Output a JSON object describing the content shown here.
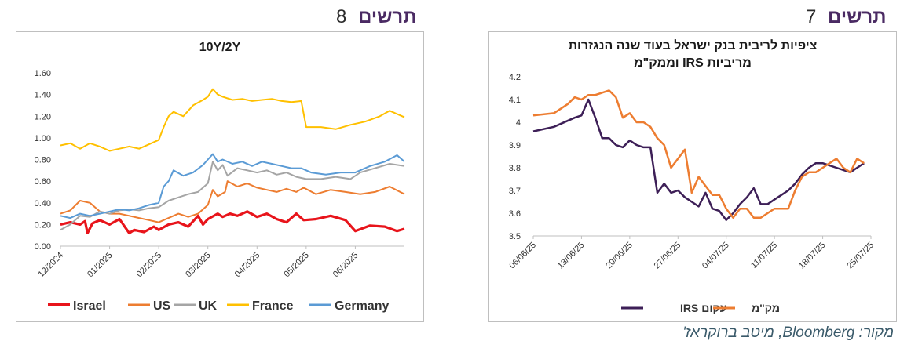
{
  "figure8": {
    "label": "תרשים",
    "number": "8",
    "chart_data": {
      "type": "line",
      "title": "10Y/2Y",
      "xlabel": "",
      "ylabel": "",
      "x_tick_labels": [
        "12/2024",
        "01/2025",
        "02/2025",
        "03/2025",
        "04/2025",
        "05/2025",
        "06/2025"
      ],
      "y_ticks": [
        "0.00",
        "0.20",
        "0.40",
        "0.60",
        "0.80",
        "1.00",
        "1.20",
        "1.40",
        "1.60"
      ],
      "ylim": [
        0,
        1.6
      ],
      "xlim": [
        0,
        7.0
      ],
      "grid": false,
      "legend_position": "bottom",
      "series": [
        {
          "name": "Israel",
          "color": "#e8141b",
          "x": [
            0,
            0.2,
            0.4,
            0.5,
            0.55,
            0.65,
            0.8,
            1.0,
            1.2,
            1.4,
            1.5,
            1.7,
            1.9,
            2.0,
            2.2,
            2.4,
            2.6,
            2.8,
            2.9,
            3.0,
            3.2,
            3.3,
            3.45,
            3.6,
            3.8,
            4.0,
            4.2,
            4.4,
            4.6,
            4.8,
            4.95,
            5.2,
            5.5,
            5.8,
            6.0,
            6.3,
            6.6,
            6.85,
            7.0
          ],
          "y": [
            0.2,
            0.22,
            0.2,
            0.23,
            0.12,
            0.21,
            0.24,
            0.2,
            0.25,
            0.12,
            0.15,
            0.13,
            0.18,
            0.15,
            0.2,
            0.22,
            0.18,
            0.28,
            0.2,
            0.25,
            0.3,
            0.27,
            0.3,
            0.28,
            0.32,
            0.27,
            0.3,
            0.25,
            0.22,
            0.3,
            0.24,
            0.25,
            0.28,
            0.24,
            0.14,
            0.19,
            0.18,
            0.14,
            0.16
          ]
        },
        {
          "name": "US",
          "color": "#ed7d31",
          "x": [
            0,
            0.2,
            0.4,
            0.6,
            0.8,
            1.0,
            1.2,
            1.4,
            1.6,
            1.8,
            2.0,
            2.2,
            2.4,
            2.6,
            2.8,
            3.0,
            3.1,
            3.2,
            3.35,
            3.4,
            3.6,
            3.8,
            4.0,
            4.2,
            4.4,
            4.6,
            4.8,
            4.95,
            5.2,
            5.5,
            5.8,
            6.1,
            6.4,
            6.7,
            7.0
          ],
          "y": [
            0.3,
            0.33,
            0.42,
            0.4,
            0.32,
            0.3,
            0.3,
            0.28,
            0.26,
            0.24,
            0.22,
            0.26,
            0.3,
            0.27,
            0.3,
            0.38,
            0.52,
            0.46,
            0.5,
            0.6,
            0.55,
            0.58,
            0.54,
            0.52,
            0.5,
            0.53,
            0.5,
            0.54,
            0.48,
            0.52,
            0.5,
            0.48,
            0.5,
            0.55,
            0.48
          ]
        },
        {
          "name": "UK",
          "color": "#a5a5a5",
          "x": [
            0,
            0.2,
            0.4,
            0.6,
            0.8,
            1.0,
            1.2,
            1.4,
            1.6,
            1.8,
            2.0,
            2.2,
            2.4,
            2.6,
            2.8,
            3.0,
            3.1,
            3.2,
            3.3,
            3.4,
            3.6,
            3.8,
            4.0,
            4.2,
            4.4,
            4.6,
            4.8,
            5.0,
            5.3,
            5.6,
            5.9,
            6.1,
            6.4,
            6.7,
            7.0
          ],
          "y": [
            0.15,
            0.2,
            0.28,
            0.27,
            0.32,
            0.3,
            0.33,
            0.34,
            0.33,
            0.35,
            0.36,
            0.42,
            0.45,
            0.48,
            0.5,
            0.58,
            0.78,
            0.7,
            0.75,
            0.65,
            0.72,
            0.7,
            0.68,
            0.7,
            0.66,
            0.68,
            0.64,
            0.62,
            0.62,
            0.64,
            0.62,
            0.68,
            0.72,
            0.76,
            0.74
          ]
        },
        {
          "name": "France",
          "color": "#ffc000",
          "x": [
            0,
            0.2,
            0.4,
            0.6,
            0.8,
            1.0,
            1.2,
            1.4,
            1.6,
            1.8,
            2.0,
            2.1,
            2.2,
            2.3,
            2.5,
            2.7,
            2.9,
            3.0,
            3.1,
            3.2,
            3.3,
            3.5,
            3.7,
            3.9,
            4.1,
            4.3,
            4.5,
            4.7,
            4.9,
            5.0,
            5.3,
            5.6,
            5.9,
            6.2,
            6.5,
            6.7,
            7.0
          ],
          "y": [
            0.93,
            0.95,
            0.9,
            0.95,
            0.92,
            0.88,
            0.9,
            0.92,
            0.9,
            0.94,
            0.98,
            1.1,
            1.2,
            1.24,
            1.2,
            1.3,
            1.35,
            1.38,
            1.45,
            1.4,
            1.38,
            1.35,
            1.36,
            1.34,
            1.35,
            1.36,
            1.34,
            1.33,
            1.34,
            1.1,
            1.1,
            1.08,
            1.12,
            1.15,
            1.2,
            1.25,
            1.19
          ]
        },
        {
          "name": "Germany",
          "color": "#5b9bd5",
          "x": [
            0,
            0.2,
            0.4,
            0.6,
            0.8,
            1.0,
            1.2,
            1.4,
            1.6,
            1.8,
            2.0,
            2.1,
            2.2,
            2.3,
            2.5,
            2.7,
            2.9,
            3.0,
            3.1,
            3.2,
            3.3,
            3.5,
            3.7,
            3.9,
            4.1,
            4.3,
            4.5,
            4.7,
            4.9,
            5.1,
            5.4,
            5.7,
            6.0,
            6.3,
            6.6,
            6.85,
            7.0
          ],
          "y": [
            0.28,
            0.26,
            0.3,
            0.28,
            0.3,
            0.32,
            0.34,
            0.33,
            0.35,
            0.38,
            0.4,
            0.55,
            0.6,
            0.7,
            0.65,
            0.68,
            0.75,
            0.8,
            0.85,
            0.78,
            0.8,
            0.76,
            0.78,
            0.74,
            0.78,
            0.76,
            0.74,
            0.72,
            0.72,
            0.68,
            0.66,
            0.68,
            0.68,
            0.74,
            0.78,
            0.84,
            0.78
          ]
        }
      ]
    }
  },
  "figure7": {
    "label": "תרשים",
    "number": "7",
    "chart_data": {
      "type": "line",
      "title": "ציפיות לריבית בנק ישראל בעוד שנה הנגזרות מריביות IRS וממק\"מ",
      "xlabel": "",
      "ylabel": "",
      "x_tick_labels": [
        "06/06/25",
        "13/06/25",
        "20/06/25",
        "27/06/25",
        "04/07/25",
        "11/07/25",
        "18/07/25",
        "25/07/25"
      ],
      "y_ticks": [
        "3.5",
        "3.6",
        "3.7",
        "3.8",
        "3.9",
        "4",
        "4.1",
        "4.2"
      ],
      "ylim": [
        3.5,
        4.2
      ],
      "xlim": [
        0,
        49
      ],
      "grid": false,
      "legend_position": "bottom",
      "series": [
        {
          "name": "עקום IRS",
          "color": "#3d1f57",
          "x": [
            0,
            3,
            6,
            7,
            8,
            9,
            10,
            11,
            12,
            13,
            14,
            15,
            16,
            17,
            18,
            19,
            20,
            21,
            22,
            23,
            24,
            25,
            26,
            27,
            28,
            29,
            30,
            31,
            32,
            33,
            34,
            35,
            36,
            37,
            38,
            39,
            40,
            41,
            42,
            43,
            44,
            45,
            46,
            47,
            48
          ],
          "y": [
            3.96,
            3.98,
            4.02,
            4.03,
            4.1,
            4.02,
            3.93,
            3.93,
            3.9,
            3.89,
            3.92,
            3.9,
            3.89,
            3.89,
            3.69,
            3.73,
            3.69,
            3.7,
            3.67,
            3.65,
            3.63,
            3.69,
            3.62,
            3.61,
            3.57,
            3.6,
            3.64,
            3.67,
            3.71,
            3.64,
            3.64,
            3.66,
            3.68,
            3.7,
            3.73,
            3.77,
            3.8,
            3.82,
            3.82,
            3.81,
            3.8,
            3.79,
            3.78,
            3.8,
            3.82
          ]
        },
        {
          "name": "מק\"מ",
          "color": "#ed7d31",
          "x": [
            0,
            3,
            5,
            6,
            7,
            8,
            9,
            10,
            11,
            12,
            13,
            14,
            15,
            16,
            17,
            18,
            19,
            20,
            21,
            22,
            23,
            24,
            25,
            26,
            27,
            28,
            29,
            30,
            31,
            32,
            33,
            34,
            35,
            36,
            37,
            38,
            39,
            40,
            41,
            42,
            43,
            44,
            45,
            46,
            47,
            48
          ],
          "y": [
            4.03,
            4.04,
            4.08,
            4.11,
            4.1,
            4.12,
            4.12,
            4.13,
            4.14,
            4.11,
            4.02,
            4.04,
            4.0,
            4.0,
            3.98,
            3.93,
            3.9,
            3.8,
            3.84,
            3.88,
            3.69,
            3.76,
            3.72,
            3.68,
            3.68,
            3.62,
            3.58,
            3.62,
            3.62,
            3.58,
            3.58,
            3.6,
            3.62,
            3.62,
            3.62,
            3.7,
            3.76,
            3.78,
            3.78,
            3.8,
            3.82,
            3.84,
            3.8,
            3.78,
            3.84,
            3.82
          ]
        }
      ]
    }
  },
  "source_text": "מקור: Bloomberg, מיטב ברוקראז'"
}
